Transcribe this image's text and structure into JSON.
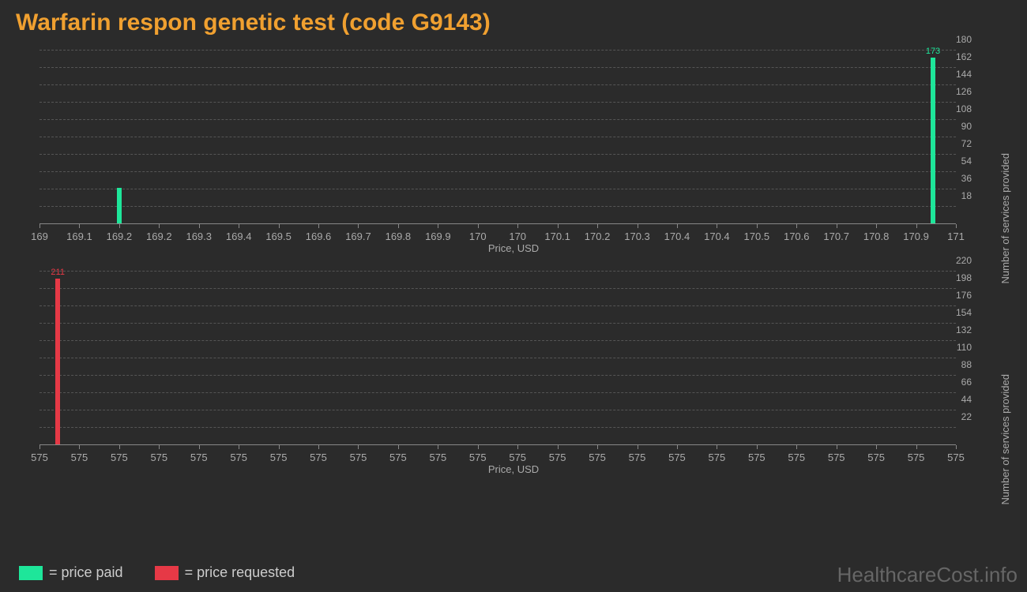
{
  "title": "Warfarin respon genetic test (code G9143)",
  "colors": {
    "background": "#2b2b2b",
    "title": "#f0a030",
    "axis": "#888888",
    "tick_label": "#aaaaaa",
    "grid": "#555555",
    "paid": "#1ee69a",
    "requested": "#e63946",
    "legend_text": "#cccccc",
    "watermark": "#666666"
  },
  "chart1": {
    "type": "bar",
    "x_ticks": [
      "169",
      "169.1",
      "169.2",
      "169.2",
      "169.3",
      "169.4",
      "169.5",
      "169.6",
      "169.7",
      "169.8",
      "169.9",
      "170",
      "170",
      "170.1",
      "170.2",
      "170.3",
      "170.4",
      "170.4",
      "170.5",
      "170.6",
      "170.7",
      "170.8",
      "170.9",
      "171"
    ],
    "x_title": "Price, USD",
    "y_title": "Number of services provided",
    "y_ticks": [
      18,
      36,
      54,
      72,
      90,
      108,
      126,
      144,
      162,
      180
    ],
    "ymax": 180,
    "bars": [
      {
        "x_pct": 8.7,
        "value": 38,
        "label": "",
        "color": "#1ee69a"
      },
      {
        "x_pct": 97.5,
        "value": 173,
        "label": "173",
        "color": "#1ee69a"
      }
    ]
  },
  "chart2": {
    "type": "bar",
    "x_ticks": [
      "575",
      "575",
      "575",
      "575",
      "575",
      "575",
      "575",
      "575",
      "575",
      "575",
      "575",
      "575",
      "575",
      "575",
      "575",
      "575",
      "575",
      "575",
      "575",
      "575",
      "575",
      "575",
      "575",
      "575"
    ],
    "x_title": "Price, USD",
    "y_title": "Number of services provided",
    "y_ticks": [
      22,
      44,
      66,
      88,
      110,
      132,
      154,
      176,
      198,
      220
    ],
    "ymax": 220,
    "bars": [
      {
        "x_pct": 2.0,
        "value": 211,
        "label": "211",
        "color": "#e63946"
      }
    ]
  },
  "legend": {
    "paid": "= price paid",
    "requested": "= price requested"
  },
  "watermark": "HealthcareCost.info"
}
